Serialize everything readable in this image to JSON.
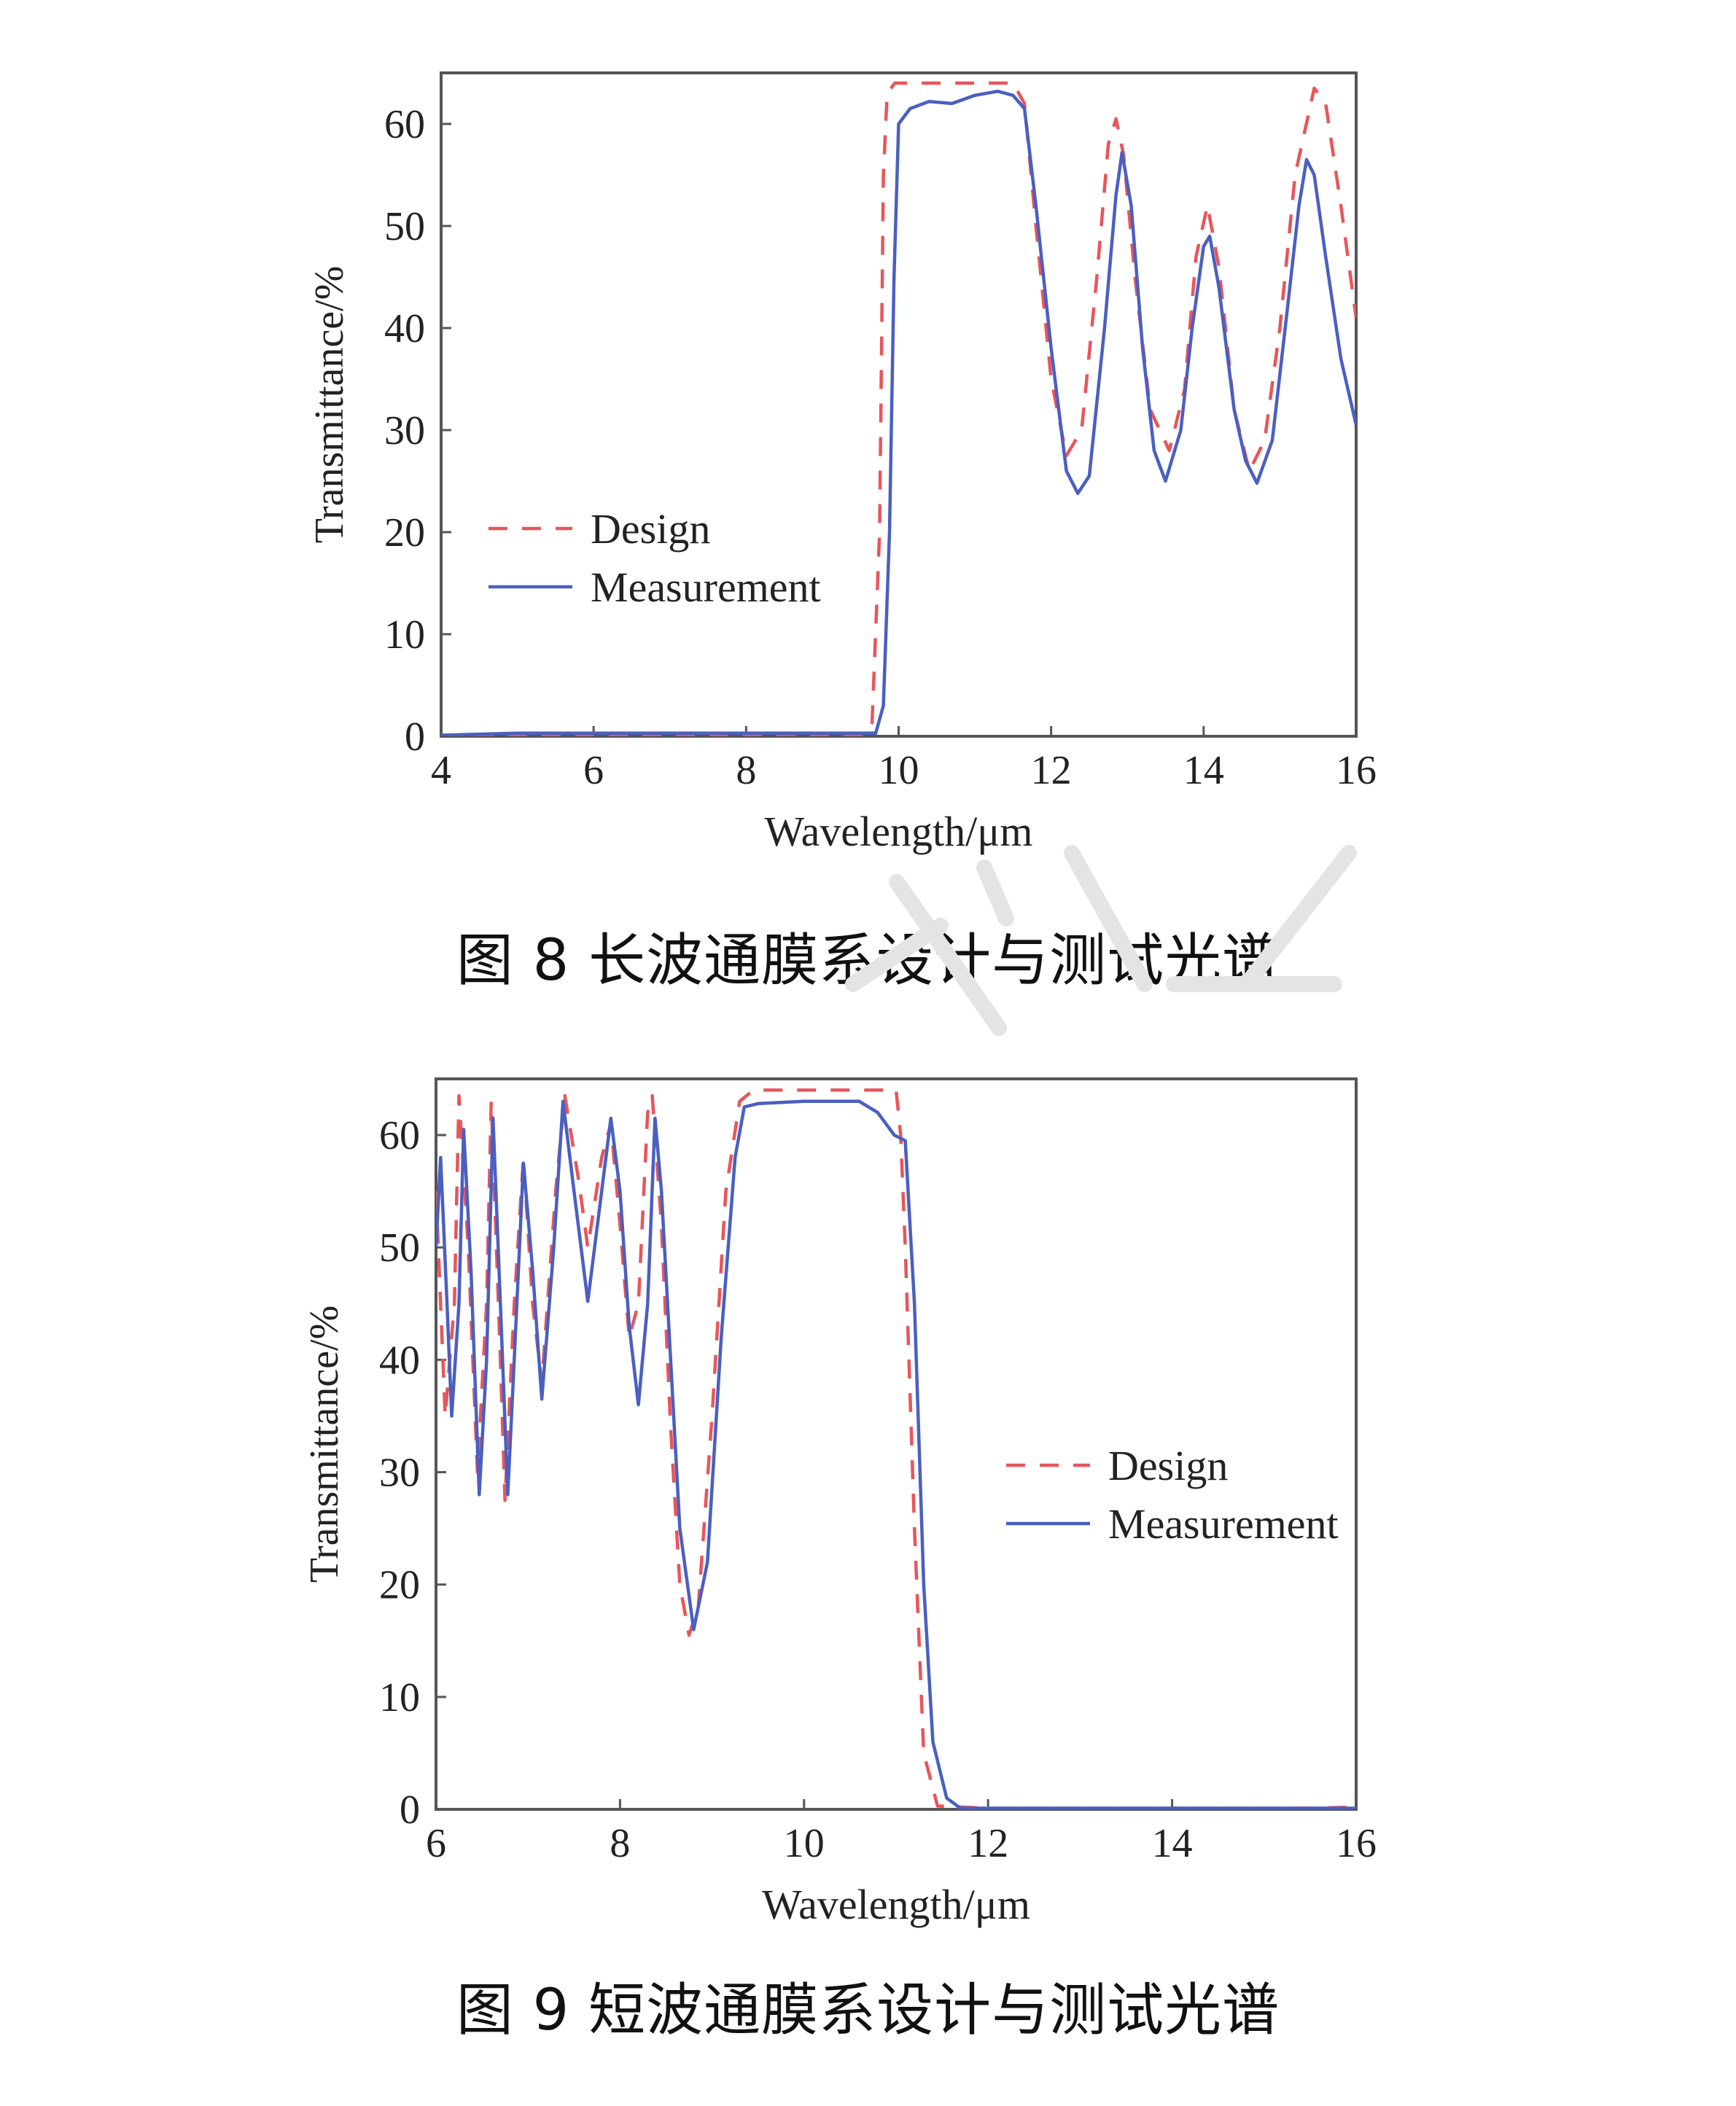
{
  "figures": [
    {
      "caption": "图 8  长波通膜系设计与测试光谱",
      "chart_data": {
        "type": "line",
        "title": "",
        "xlabel": "Wavelength/μm",
        "ylabel": "Transmittance/%",
        "xlim": [
          4,
          16
        ],
        "ylim": [
          0,
          65
        ],
        "xticks": [
          4,
          6,
          8,
          10,
          12,
          14,
          16
        ],
        "yticks": [
          0,
          10,
          20,
          30,
          40,
          50,
          60
        ],
        "grid": false,
        "legend_position": "center-left",
        "series": [
          {
            "name": "Design",
            "style": "dashed",
            "color": "#e8555a",
            "points": [
              [
                4,
                0.1
              ],
              [
                9.5,
                0.1
              ],
              [
                9.65,
                1
              ],
              [
                9.75,
                20
              ],
              [
                9.8,
                55
              ],
              [
                9.85,
                63
              ],
              [
                9.95,
                64
              ],
              [
                11.5,
                64
              ],
              [
                11.65,
                62
              ],
              [
                11.8,
                50
              ],
              [
                12.0,
                35
              ],
              [
                12.2,
                27.5
              ],
              [
                12.4,
                30
              ],
              [
                12.6,
                45
              ],
              [
                12.75,
                58
              ],
              [
                12.85,
                60.5
              ],
              [
                12.95,
                57
              ],
              [
                13.1,
                45
              ],
              [
                13.3,
                32
              ],
              [
                13.55,
                28
              ],
              [
                13.75,
                34
              ],
              [
                13.9,
                47
              ],
              [
                14.05,
                52
              ],
              [
                14.2,
                46
              ],
              [
                14.4,
                32
              ],
              [
                14.6,
                26
              ],
              [
                14.8,
                29
              ],
              [
                15.0,
                40
              ],
              [
                15.2,
                55
              ],
              [
                15.45,
                63.5
              ],
              [
                15.6,
                62
              ],
              [
                15.8,
                52
              ],
              [
                16.0,
                41
              ]
            ]
          },
          {
            "name": "Measurement",
            "style": "solid",
            "color": "#4a5fc1",
            "points": [
              [
                4,
                0.1
              ],
              [
                5,
                0.3
              ],
              [
                9.7,
                0.3
              ],
              [
                9.8,
                3
              ],
              [
                9.88,
                20
              ],
              [
                9.94,
                45
              ],
              [
                10.0,
                60
              ],
              [
                10.15,
                61.5
              ],
              [
                10.4,
                62.2
              ],
              [
                10.7,
                62
              ],
              [
                11.0,
                62.8
              ],
              [
                11.3,
                63.2
              ],
              [
                11.5,
                62.8
              ],
              [
                11.65,
                61.5
              ],
              [
                11.8,
                52
              ],
              [
                12.0,
                38
              ],
              [
                12.2,
                26
              ],
              [
                12.35,
                23.8
              ],
              [
                12.5,
                25.5
              ],
              [
                12.7,
                40
              ],
              [
                12.85,
                53
              ],
              [
                12.93,
                57.2
              ],
              [
                13.05,
                52
              ],
              [
                13.2,
                38
              ],
              [
                13.35,
                28
              ],
              [
                13.5,
                25
              ],
              [
                13.7,
                30
              ],
              [
                13.85,
                40
              ],
              [
                14.0,
                48
              ],
              [
                14.08,
                49
              ],
              [
                14.2,
                44
              ],
              [
                14.4,
                32
              ],
              [
                14.55,
                27
              ],
              [
                14.7,
                24.8
              ],
              [
                14.9,
                29
              ],
              [
                15.1,
                42
              ],
              [
                15.25,
                52
              ],
              [
                15.35,
                56.5
              ],
              [
                15.45,
                55
              ],
              [
                15.6,
                47
              ],
              [
                15.8,
                37
              ],
              [
                16.0,
                30.5
              ]
            ]
          }
        ]
      }
    },
    {
      "caption": "图 9  短波通膜系设计与测试光谱",
      "chart_data": {
        "type": "line",
        "title": "",
        "xlabel": "Wavelength/μm",
        "ylabel": "Transmittance/%",
        "xlim": [
          6,
          16
        ],
        "ylim": [
          0,
          65
        ],
        "xticks": [
          6,
          8,
          10,
          12,
          14,
          16
        ],
        "yticks": [
          0,
          10,
          20,
          30,
          40,
          50,
          60
        ],
        "grid": false,
        "legend_position": "center-right",
        "series": [
          {
            "name": "Design",
            "style": "dashed",
            "color": "#e8555a",
            "points": [
              [
                6.0,
                55
              ],
              [
                6.1,
                35
              ],
              [
                6.2,
                45
              ],
              [
                6.25,
                63.5
              ],
              [
                6.35,
                50
              ],
              [
                6.45,
                30
              ],
              [
                6.55,
                45
              ],
              [
                6.6,
                63
              ],
              [
                6.7,
                40
              ],
              [
                6.75,
                27.5
              ],
              [
                6.85,
                45
              ],
              [
                6.95,
                58
              ],
              [
                7.05,
                45
              ],
              [
                7.15,
                38
              ],
              [
                7.3,
                55
              ],
              [
                7.4,
                63.5
              ],
              [
                7.55,
                56
              ],
              [
                7.65,
                50
              ],
              [
                7.8,
                58
              ],
              [
                7.9,
                61
              ],
              [
                8.0,
                52
              ],
              [
                8.1,
                42
              ],
              [
                8.2,
                45
              ],
              [
                8.3,
                62
              ],
              [
                8.35,
                63.5
              ],
              [
                8.45,
                52
              ],
              [
                8.55,
                34
              ],
              [
                8.65,
                20
              ],
              [
                8.75,
                15.5
              ],
              [
                8.85,
                18
              ],
              [
                9.0,
                35
              ],
              [
                9.15,
                55
              ],
              [
                9.3,
                63
              ],
              [
                9.45,
                64
              ],
              [
                11.0,
                64
              ],
              [
                11.05,
                60
              ],
              [
                11.1,
                50
              ],
              [
                11.2,
                25
              ],
              [
                11.3,
                5
              ],
              [
                11.45,
                0.3
              ],
              [
                12,
                0.1
              ],
              [
                15.5,
                0.1
              ],
              [
                16,
                0.2
              ]
            ]
          },
          {
            "name": "Measurement",
            "style": "solid",
            "color": "#4a5fc1",
            "points": [
              [
                6.0,
                50
              ],
              [
                6.05,
                58
              ],
              [
                6.12,
                45
              ],
              [
                6.17,
                35
              ],
              [
                6.25,
                45
              ],
              [
                6.3,
                60.5
              ],
              [
                6.38,
                48
              ],
              [
                6.47,
                28
              ],
              [
                6.55,
                40
              ],
              [
                6.62,
                61.5
              ],
              [
                6.7,
                45
              ],
              [
                6.78,
                28
              ],
              [
                6.85,
                40
              ],
              [
                6.95,
                57.5
              ],
              [
                7.05,
                48
              ],
              [
                7.15,
                36.5
              ],
              [
                7.28,
                50
              ],
              [
                7.38,
                63
              ],
              [
                7.5,
                55
              ],
              [
                7.65,
                45.2
              ],
              [
                7.8,
                55
              ],
              [
                7.9,
                61.5
              ],
              [
                8.0,
                55
              ],
              [
                8.1,
                43
              ],
              [
                8.2,
                36
              ],
              [
                8.3,
                45
              ],
              [
                8.38,
                61.5
              ],
              [
                8.45,
                55
              ],
              [
                8.55,
                40
              ],
              [
                8.65,
                25
              ],
              [
                8.8,
                16
              ],
              [
                8.95,
                22
              ],
              [
                9.1,
                42
              ],
              [
                9.25,
                58
              ],
              [
                9.35,
                62.5
              ],
              [
                9.5,
                62.8
              ],
              [
                10.0,
                63
              ],
              [
                10.6,
                63
              ],
              [
                10.8,
                62
              ],
              [
                10.98,
                60
              ],
              [
                11.1,
                59.5
              ],
              [
                11.2,
                45
              ],
              [
                11.3,
                20
              ],
              [
                11.4,
                6
              ],
              [
                11.55,
                1
              ],
              [
                11.7,
                0.1
              ],
              [
                16,
                0.1
              ]
            ]
          }
        ]
      }
    }
  ]
}
